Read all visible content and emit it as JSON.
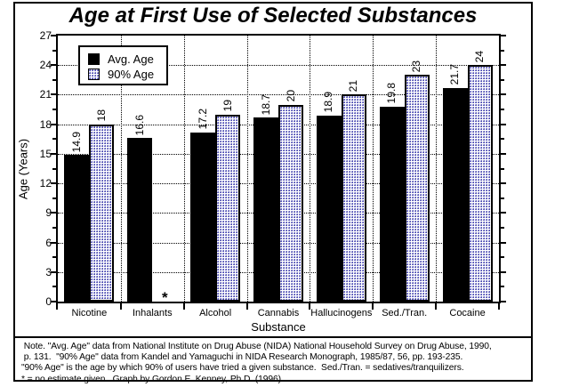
{
  "title": "Age at First Use of Selected Substances",
  "chart_data": {
    "type": "bar",
    "title": "Age at First Use of Selected Substances",
    "xlabel": "Substance",
    "ylabel": "Age (Years)",
    "ylim": [
      0,
      27
    ],
    "ytick_step": 3,
    "grid": "dotted",
    "legend_position": "upper-left",
    "categories": [
      "Nicotine",
      "Inhalants",
      "Alcohol",
      "Cannabis",
      "Hallucinogens",
      "Sed./Tran.",
      "Cocaine"
    ],
    "series": [
      {
        "name": "Avg. Age",
        "style": "solid-black",
        "values": [
          14.9,
          16.6,
          17.2,
          18.7,
          18.9,
          19.8,
          21.7
        ],
        "labels": [
          "14.9",
          "16.6",
          "17.2",
          "18.7",
          "18.9",
          "19.8",
          "21.7"
        ]
      },
      {
        "name": "90% Age",
        "style": "blue-dot-pattern",
        "values": [
          18,
          null,
          19,
          20,
          21,
          23,
          24
        ],
        "labels": [
          "18",
          "",
          "19",
          "20",
          "21",
          "23",
          "24"
        ]
      }
    ],
    "null_label": "*"
  },
  "notes": {
    "lines": [
      " Note. \"Avg. Age\" data from National Institute on Drug Abuse (NIDA) National Household Survey on Drug Abuse, 1990,",
      " p. 131.  \"90% Age\" data from Kandel and Yamaguchi in NIDA Research Monograph, 1985/87, 56, pp. 193-235.",
      "\"90% Age\" is the age by which 90% of users have tried a given substance.  Sed./Tran. = sedatives/tranquilizers.",
      "* = no estimate given.  Graph by Gordon E. Kenney, Ph.D. (1996)."
    ]
  },
  "colors": {
    "bar": "#000000",
    "pattern_dot": "#1b1b9e",
    "background": "#ffffff",
    "frame": "#000000"
  }
}
